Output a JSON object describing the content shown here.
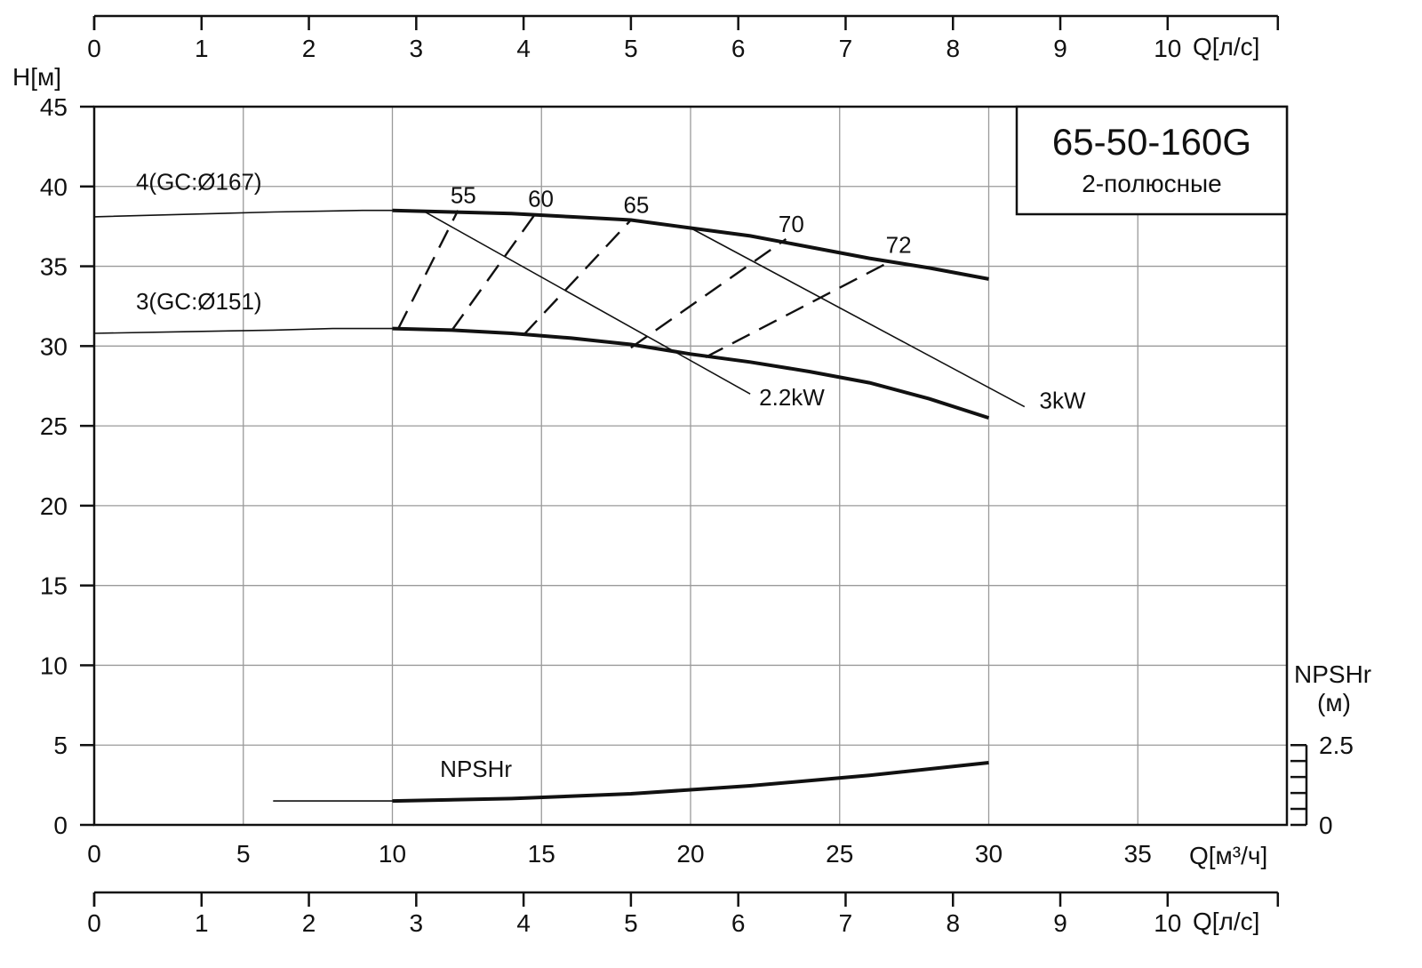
{
  "chart_data": {
    "type": "line",
    "title": "65-50-160G",
    "subtitle": "2-полюсные",
    "xlabel": "Q[м³/ч]",
    "ylabel": "H[м]",
    "x_ticks": [
      0,
      5,
      10,
      15,
      20,
      25,
      30,
      35
    ],
    "y_ticks": [
      0,
      5,
      10,
      15,
      20,
      25,
      30,
      35,
      40,
      45
    ],
    "xlim": [
      0,
      40
    ],
    "ylim": [
      0,
      45
    ],
    "grid": true,
    "flow_ls_axis": {
      "label": "Q[л/с]",
      "ticks": [
        0,
        1,
        2,
        3,
        4,
        5,
        6,
        7,
        8,
        9,
        10
      ]
    },
    "npshr_axis": {
      "label_line1": "NPSHr",
      "label_line2": "(м)",
      "ticks": [
        "0",
        "2.5"
      ],
      "max": 2.5
    },
    "series": [
      {
        "name": "4(GC:Ø167)",
        "style": "bold",
        "x": [
          10,
          12,
          14,
          16,
          18,
          20,
          22,
          24,
          26,
          28,
          30
        ],
        "y": [
          38.5,
          38.4,
          38.3,
          38.1,
          37.9,
          37.4,
          36.9,
          36.2,
          35.5,
          34.9,
          34.2
        ]
      },
      {
        "name": "",
        "style": "thin",
        "x": [
          0,
          3,
          6,
          9,
          10
        ],
        "y": [
          38.1,
          38.25,
          38.4,
          38.5,
          38.5
        ]
      },
      {
        "name": "3(GC:Ø151)",
        "style": "bold",
        "x": [
          10,
          12,
          14,
          16,
          18,
          20,
          22,
          24,
          26,
          28,
          30
        ],
        "y": [
          31.1,
          31.0,
          30.8,
          30.5,
          30.1,
          29.5,
          29.0,
          28.4,
          27.7,
          26.7,
          25.5
        ]
      },
      {
        "name": "",
        "style": "thin",
        "x": [
          0,
          3,
          6,
          8,
          10
        ],
        "y": [
          30.8,
          30.9,
          31.0,
          31.1,
          31.1
        ]
      },
      {
        "name": "NPSHr",
        "style": "bold",
        "x": [
          10,
          14,
          18,
          22,
          26,
          30
        ],
        "y": [
          1.5,
          1.65,
          1.95,
          2.45,
          3.1,
          3.9
        ]
      },
      {
        "name": "",
        "style": "thin",
        "x": [
          6,
          10
        ],
        "y": [
          1.5,
          1.5
        ]
      }
    ],
    "power_lines": [
      {
        "name": "2.2kW",
        "x": [
          11,
          22
        ],
        "y": [
          38.5,
          27.0
        ]
      },
      {
        "name": "3kW",
        "x": [
          20,
          31.2
        ],
        "y": [
          37.4,
          26.2
        ]
      }
    ],
    "efficiency_lines": [
      {
        "name": "55",
        "x": [
          10.2,
          12.2
        ],
        "y": [
          31.1,
          38.5
        ]
      },
      {
        "name": "60",
        "x": [
          12.0,
          14.8
        ],
        "y": [
          31.0,
          38.3
        ]
      },
      {
        "name": "65",
        "x": [
          14.4,
          18.0
        ],
        "y": [
          30.7,
          37.9
        ]
      },
      {
        "name": "70",
        "x": [
          18.0,
          23.2
        ],
        "y": [
          29.9,
          36.7
        ]
      },
      {
        "name": "72",
        "x": [
          20.5,
          26.8
        ],
        "y": [
          29.3,
          35.4
        ]
      }
    ]
  }
}
